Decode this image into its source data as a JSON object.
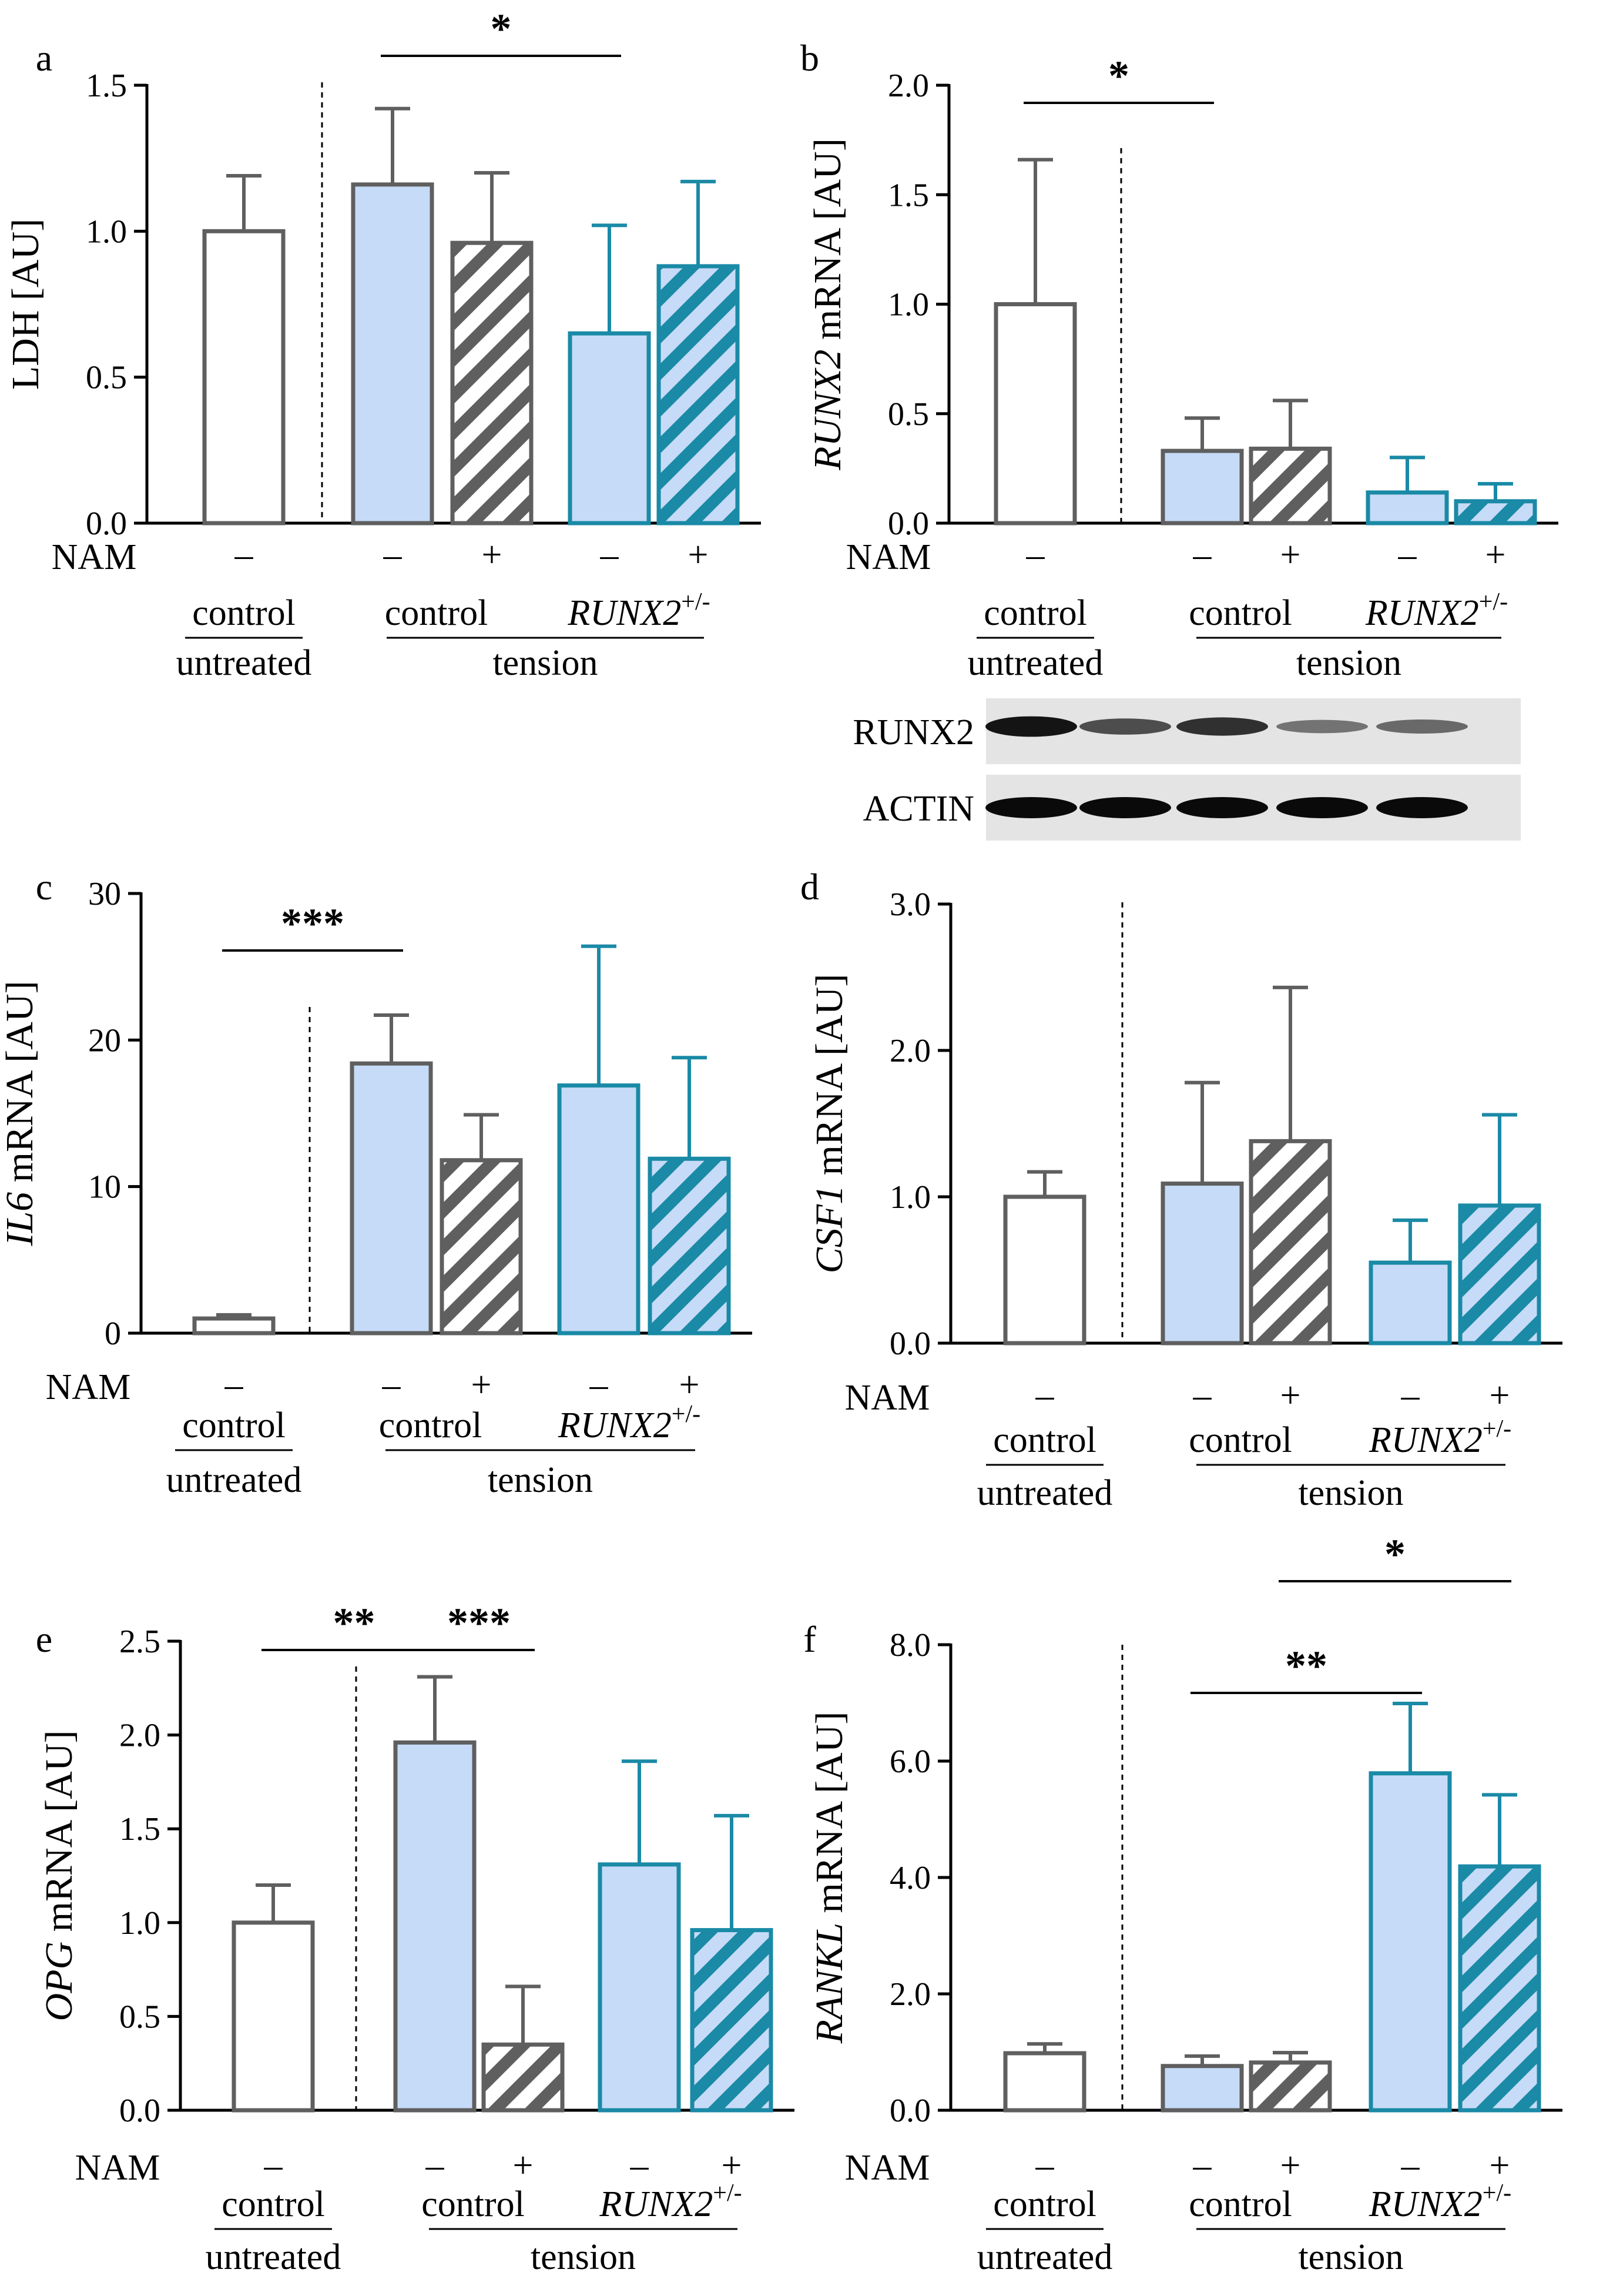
{
  "figure": {
    "nam_label": "NAM",
    "minus": "–",
    "plus": "+",
    "control": "control",
    "untreated": "untreated",
    "tension": "tension",
    "runx2": "RUNX2",
    "runx2_sup": "+/-",
    "colors": {
      "control_untreated": "#ffffff",
      "gray_edge": "#5f5f5f",
      "blue_fill": "#c6dbf7",
      "teal_edge": "#1a8aa6"
    },
    "western_blot": {
      "labels": [
        "RUNX2",
        "ACTIN"
      ],
      "runx2_intensity": [
        0.95,
        0.65,
        0.8,
        0.45,
        0.5
      ],
      "actin_intensity": [
        1.0,
        1.0,
        1.0,
        1.0,
        1.0
      ]
    }
  },
  "chart_data": [
    {
      "panel": "a",
      "type": "bar",
      "ylabel": "LDH [AU]",
      "italic_gene": "",
      "ylim": [
        0,
        1.5
      ],
      "yticks": [
        "0.0",
        "0.5",
        "1.0",
        "1.5"
      ],
      "groups": [
        "control untreated NAM –",
        "tension control NAM –",
        "tension control NAM +",
        "tension RUNX2+/- NAM –",
        "tension RUNX2+/- NAM +"
      ],
      "values": [
        1.0,
        1.16,
        0.96,
        0.65,
        0.88
      ],
      "errors": [
        0.19,
        0.26,
        0.24,
        0.37,
        0.29
      ],
      "significance": [
        {
          "label": "*",
          "from": 1,
          "to": 3
        }
      ]
    },
    {
      "panel": "b",
      "type": "bar",
      "ylabel": " mRNA [AU]",
      "italic_gene": "RUNX2",
      "ylim": [
        0,
        2.0
      ],
      "yticks": [
        "0.0",
        "0.5",
        "1.0",
        "1.5",
        "2.0"
      ],
      "groups": [
        "control untreated NAM –",
        "tension control NAM –",
        "tension control NAM +",
        "tension RUNX2+/- NAM –",
        "tension RUNX2+/- NAM +"
      ],
      "values": [
        1.0,
        0.33,
        0.34,
        0.14,
        0.1
      ],
      "errors": [
        0.66,
        0.15,
        0.22,
        0.16,
        0.08
      ],
      "significance": [
        {
          "label": "*",
          "from": 0,
          "to": 1
        }
      ]
    },
    {
      "panel": "c",
      "type": "bar",
      "ylabel": " mRNA [AU]",
      "italic_gene": "IL6",
      "ylim": [
        0,
        30
      ],
      "yticks": [
        "0",
        "10",
        "20",
        "30"
      ],
      "groups": [
        "control untreated NAM –",
        "tension control NAM –",
        "tension control NAM +",
        "tension RUNX2+/- NAM –",
        "tension RUNX2+/- NAM +"
      ],
      "values": [
        1.0,
        18.4,
        11.8,
        16.9,
        11.9
      ],
      "errors": [
        0.25,
        3.3,
        3.1,
        9.5,
        6.9
      ],
      "significance": [
        {
          "label": "***",
          "from": 0,
          "to": 1
        }
      ]
    },
    {
      "panel": "d",
      "type": "bar",
      "ylabel": " mRNA [AU]",
      "italic_gene": "CSF1",
      "ylim": [
        0,
        3.0
      ],
      "yticks": [
        "0.0",
        "1.0",
        "2.0",
        "3.0"
      ],
      "groups": [
        "control untreated NAM –",
        "tension control NAM –",
        "tension control NAM +",
        "tension RUNX2+/- NAM –",
        "tension RUNX2+/- NAM +"
      ],
      "values": [
        1.0,
        1.09,
        1.38,
        0.55,
        0.94
      ],
      "errors": [
        0.17,
        0.69,
        1.05,
        0.29,
        0.62
      ],
      "significance": []
    },
    {
      "panel": "e",
      "type": "bar",
      "ylabel": " mRNA [AU]",
      "italic_gene": "OPG",
      "ylim": [
        0,
        2.5
      ],
      "yticks": [
        "0.0",
        "0.5",
        "1.0",
        "1.5",
        "2.0",
        "2.5"
      ],
      "groups": [
        "control untreated NAM –",
        "tension control NAM –",
        "tension control NAM +",
        "tension RUNX2+/- NAM –",
        "tension RUNX2+/- NAM +"
      ],
      "values": [
        1.0,
        1.96,
        0.35,
        1.31,
        0.96
      ],
      "errors": [
        0.2,
        0.35,
        0.31,
        0.55,
        0.61
      ],
      "significance": [
        {
          "label": "**",
          "from": 0,
          "to": 1
        },
        {
          "label": "***",
          "from": 1,
          "to": 2
        }
      ]
    },
    {
      "panel": "f",
      "type": "bar",
      "ylabel": " mRNA [AU]",
      "italic_gene": "RANKL",
      "ylim": [
        0,
        8.0
      ],
      "yticks": [
        "0.0",
        "2.0",
        "4.0",
        "6.0",
        "8.0"
      ],
      "groups": [
        "control untreated NAM –",
        "tension control NAM –",
        "tension control NAM +",
        "tension RUNX2+/- NAM –",
        "tension RUNX2+/- NAM +"
      ],
      "values": [
        0.98,
        0.76,
        0.82,
        5.79,
        4.19
      ],
      "errors": [
        0.16,
        0.17,
        0.17,
        1.2,
        1.23
      ],
      "significance": [
        {
          "label": "**",
          "from": 1,
          "to": 3
        },
        {
          "label": "*",
          "from": 2,
          "to": 4
        }
      ]
    }
  ]
}
